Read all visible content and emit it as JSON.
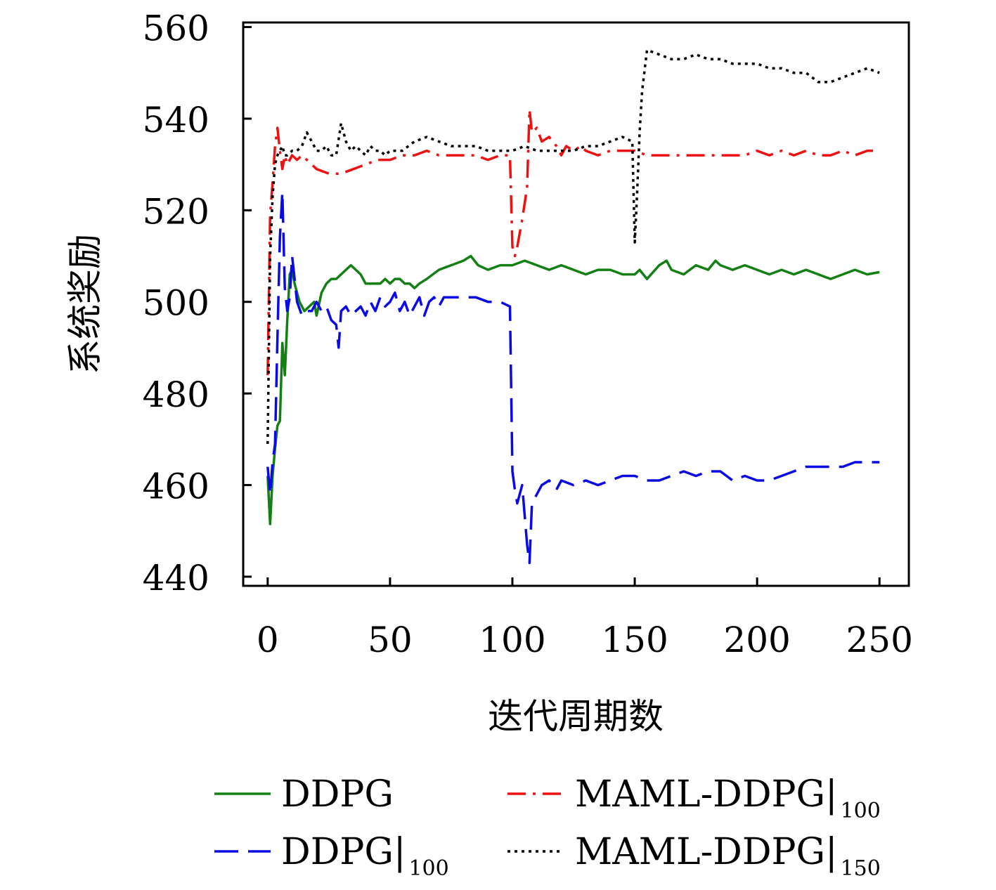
{
  "chart_data": {
    "type": "line",
    "xlabel": "迭代周期数",
    "ylabel": "系统奖励",
    "xlim": [
      -10,
      262
    ],
    "ylim": [
      438,
      561
    ],
    "xticks": [
      0,
      50,
      100,
      150,
      200,
      250
    ],
    "yticks": [
      440,
      460,
      480,
      500,
      520,
      540,
      560
    ],
    "grid": false,
    "legend_position": "bottom",
    "series": [
      {
        "name": "DDPG",
        "legend_label": "DDPG",
        "legend_sub": "",
        "color": "#138013",
        "dash": "",
        "x": [
          0,
          1,
          2,
          3,
          4,
          5,
          6,
          7,
          8,
          9,
          10,
          11,
          12,
          13,
          14,
          15,
          17,
          19,
          20,
          22,
          24,
          26,
          28,
          30,
          32,
          34,
          36,
          38,
          40,
          42,
          44,
          46,
          48,
          50,
          52,
          54,
          56,
          58,
          60,
          62,
          65,
          70,
          75,
          80,
          83,
          86,
          90,
          95,
          100,
          105,
          110,
          115,
          120,
          125,
          130,
          135,
          140,
          145,
          150,
          152,
          155,
          160,
          163,
          165,
          170,
          175,
          180,
          183,
          185,
          190,
          195,
          200,
          205,
          210,
          215,
          220,
          225,
          230,
          235,
          240,
          245,
          250
        ],
        "y": [
          462,
          451.5,
          462,
          468,
          473,
          474,
          491,
          484,
          496,
          506,
          507,
          504,
          502,
          500,
          499,
          498,
          499,
          500,
          497,
          502,
          504,
          505,
          505,
          506,
          507,
          508,
          507,
          506,
          504,
          504,
          504,
          504,
          505,
          504,
          505,
          505,
          504,
          504,
          503,
          504,
          505,
          507,
          508,
          509,
          510,
          508,
          507,
          508,
          508,
          509,
          508,
          507,
          508,
          507,
          506,
          507,
          507,
          506,
          506,
          507,
          505,
          508,
          509,
          507,
          506,
          508,
          507,
          509,
          508,
          507,
          508,
          507,
          506,
          507,
          506,
          507,
          506,
          505,
          506,
          507,
          506,
          506.5
        ]
      },
      {
        "name": "DDPG|100",
        "legend_label": "DDPG|",
        "legend_sub": "100",
        "color": "#0a0ae6",
        "dash": "34 14",
        "x": [
          0,
          1,
          2,
          3,
          4,
          5,
          6,
          7,
          8,
          9,
          10,
          11,
          12,
          14,
          16,
          18,
          20,
          22,
          24,
          26,
          28,
          29,
          30,
          32,
          34,
          36,
          38,
          40,
          42,
          44,
          46,
          48,
          50,
          52,
          54,
          56,
          58,
          60,
          62,
          64,
          66,
          68,
          70,
          72,
          75,
          80,
          85,
          90,
          95,
          99,
          100,
          101,
          102,
          104,
          106,
          107,
          108,
          110,
          112,
          115,
          118,
          120,
          125,
          130,
          135,
          140,
          145,
          150,
          155,
          160,
          165,
          170,
          175,
          180,
          185,
          190,
          195,
          200,
          205,
          210,
          215,
          220,
          225,
          230,
          235,
          240,
          245,
          250
        ],
        "y": [
          464,
          458,
          465,
          469,
          492,
          514,
          524,
          503,
          498,
          501,
          510,
          505,
          500,
          497,
          498,
          498,
          500,
          498,
          499,
          496,
          495,
          490,
          498,
          499,
          497,
          498,
          499,
          497,
          500,
          498,
          501,
          499,
          500,
          502,
          498,
          500,
          497,
          499,
          501,
          497,
          500,
          501,
          499,
          501,
          501,
          501,
          501,
          500,
          500,
          499,
          463,
          459,
          456,
          460,
          447,
          443,
          456,
          458,
          460,
          461,
          459,
          461,
          460,
          461,
          460,
          461,
          462,
          462,
          461,
          461,
          462,
          463,
          462,
          463,
          463,
          461,
          462,
          461,
          461,
          462,
          463,
          464,
          464,
          464,
          464,
          465,
          465,
          465
        ]
      },
      {
        "name": "MAML-DDPG|100",
        "legend_label": "MAML-DDPG|",
        "legend_sub": "100",
        "color": "#ee1111",
        "dash": "26 10 4 10",
        "x": [
          0,
          1,
          2,
          3,
          4,
          5,
          6,
          7,
          8,
          10,
          12,
          14,
          16,
          18,
          20,
          25,
          30,
          35,
          40,
          45,
          50,
          55,
          60,
          65,
          70,
          75,
          80,
          85,
          90,
          95,
          98,
          99,
          100,
          101,
          102,
          104,
          106,
          107,
          108,
          110,
          112,
          115,
          118,
          120,
          122,
          125,
          128,
          130,
          135,
          140,
          145,
          150,
          155,
          160,
          165,
          170,
          175,
          180,
          185,
          190,
          195,
          200,
          205,
          210,
          215,
          220,
          225,
          230,
          235,
          240,
          245,
          250
        ],
        "y": [
          484,
          519,
          526,
          534,
          538,
          533,
          529,
          532,
          530,
          532,
          531,
          532,
          531,
          530,
          529,
          528,
          528,
          529,
          530,
          531,
          531,
          532,
          532,
          533,
          532,
          532,
          532,
          532,
          531,
          532,
          532,
          532,
          512,
          510,
          512,
          518,
          525,
          542,
          537,
          538,
          535,
          536,
          534,
          532,
          534,
          533,
          534,
          533,
          532,
          533,
          533,
          533,
          532,
          532,
          532,
          532,
          532,
          532,
          532,
          532,
          532,
          533,
          532,
          533,
          532,
          533,
          532,
          532,
          533,
          532,
          533,
          533
        ]
      },
      {
        "name": "MAML-DDPG|150",
        "legend_label": "MAML-DDPG|",
        "legend_sub": "150",
        "color": "#000000",
        "dash": "4 6",
        "x": [
          0,
          1,
          2,
          3,
          4,
          5,
          6,
          7,
          8,
          10,
          12,
          14,
          16,
          18,
          20,
          22,
          24,
          26,
          28,
          30,
          32,
          34,
          36,
          38,
          40,
          42,
          44,
          46,
          48,
          50,
          55,
          60,
          65,
          70,
          75,
          80,
          85,
          90,
          95,
          100,
          105,
          110,
          115,
          120,
          125,
          130,
          135,
          140,
          145,
          149,
          150,
          151,
          152,
          153,
          155,
          160,
          165,
          170,
          175,
          180,
          185,
          190,
          195,
          200,
          205,
          210,
          215,
          220,
          225,
          230,
          235,
          240,
          245,
          250
        ],
        "y": [
          469,
          510,
          523,
          530,
          532,
          533,
          534,
          532,
          532,
          533,
          533,
          534,
          537,
          535,
          533,
          533,
          534,
          532,
          532,
          539,
          535,
          533,
          534,
          533,
          532,
          534,
          533,
          533,
          532,
          533,
          533,
          535,
          536,
          535,
          534,
          534,
          534,
          533,
          533,
          533,
          534,
          533,
          533,
          533,
          533,
          534,
          534,
          535,
          536,
          535,
          513,
          524,
          537,
          546,
          555,
          554,
          553,
          553,
          554,
          553,
          553,
          552,
          552,
          552,
          551,
          551,
          550,
          550,
          548,
          548,
          549,
          550,
          551,
          550
        ]
      }
    ]
  }
}
